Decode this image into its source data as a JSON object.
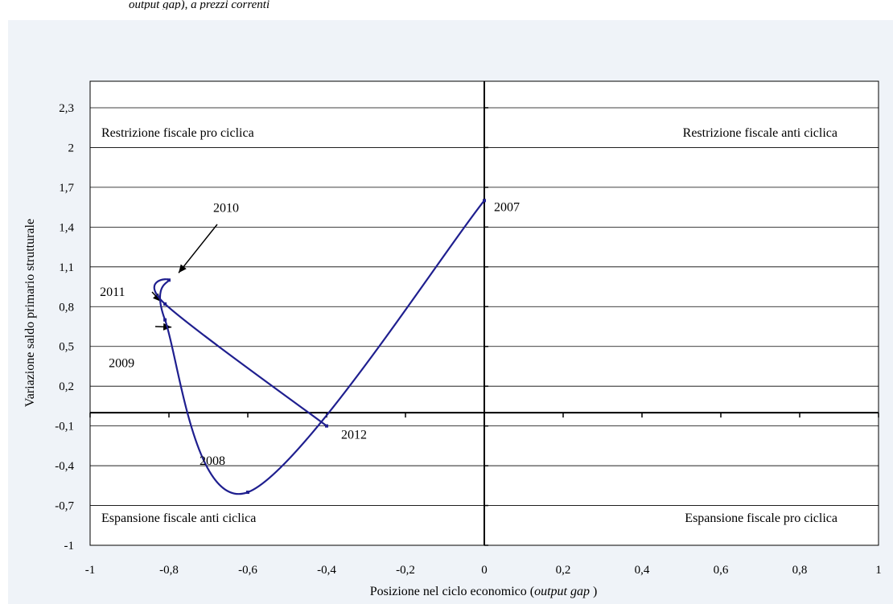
{
  "header": {
    "caption_fragment": "output gap), a prezzi correnti"
  },
  "chart_data": {
    "type": "line",
    "title": "",
    "xlabel_main": "Posizione nel ciclo economico (",
    "xlabel_italic": "output gap",
    "xlabel_end": " )",
    "ylabel": "Variazione saldo primario strutturale",
    "xlim": [
      -1,
      1
    ],
    "ylim": [
      -1,
      2.5
    ],
    "x_ticks": [
      -1,
      -0.8,
      -0.6,
      -0.4,
      -0.2,
      0,
      0.2,
      0.4,
      0.6,
      0.8,
      1
    ],
    "x_tick_labels": [
      "-1",
      "-0,8",
      "-0,6",
      "-0,4",
      "-0,2",
      "0",
      "0,2",
      "0,4",
      "0,6",
      "0,8",
      "1"
    ],
    "y_ticks": [
      -1,
      -0.7,
      -0.4,
      -0.1,
      0.2,
      0.5,
      0.8,
      1.1,
      1.4,
      1.7,
      2,
      2.3
    ],
    "y_tick_labels": [
      "-1",
      "-0,7",
      "-0,4",
      "-0,1",
      "0,2",
      "0,5",
      "0,8",
      "1,1",
      "1,4",
      "1,7",
      "2",
      "2,3"
    ],
    "grid": "horizontal",
    "line_color": "#1f1f8f",
    "series": [
      {
        "points": [
          {
            "x": 0,
            "y": 1.6,
            "label": "2007"
          },
          {
            "x": -0.6,
            "y": -0.6,
            "label": "2008"
          },
          {
            "x": -0.81,
            "y": 0.7,
            "label": "2009"
          },
          {
            "x": -0.8,
            "y": 1.0,
            "label": "2010"
          },
          {
            "x": -0.81,
            "y": 0.82,
            "label": "2011"
          },
          {
            "x": -0.4,
            "y": -0.1,
            "label": "2012"
          }
        ]
      }
    ],
    "quadrant_labels": {
      "top_left": "Restrizione fiscale pro ciclica",
      "top_right": "Restrizione fiscale anti ciclica",
      "bottom_left": "Espansione fiscale anti ciclica",
      "bottom_right": "Espansione fiscale pro ciclica"
    }
  }
}
